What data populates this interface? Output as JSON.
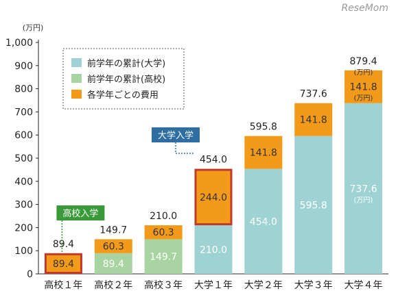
{
  "watermark": "ReseMom",
  "chart_data": {
    "type": "bar",
    "stacked": true,
    "unit_label": "(万円)",
    "categories": [
      "高校１年",
      "高校２年",
      "高校３年",
      "大学１年",
      "大学２年",
      "大学３年",
      "大学４年"
    ],
    "ylim": [
      0,
      1000
    ],
    "yticks": [
      0,
      100,
      200,
      300,
      400,
      500,
      600,
      700,
      800,
      900,
      1000
    ],
    "ytick_labels": [
      "0",
      "100",
      "200",
      "300",
      "400",
      "500",
      "600",
      "700",
      "800",
      "900",
      "1,000"
    ],
    "grid": false,
    "legend_position": "top-left",
    "series": [
      {
        "name": "前学年の累計(大学)",
        "color": "#9fd3d3",
        "values": [
          0,
          0,
          0,
          210.0,
          454.0,
          595.8,
          737.6
        ],
        "labels": [
          "",
          "",
          "",
          "210.0",
          "454.0",
          "595.8",
          "737.6"
        ]
      },
      {
        "name": "前学年の累計(高校)",
        "color": "#a7d4a0",
        "values": [
          0,
          89.4,
          149.7,
          0,
          0,
          0,
          0
        ],
        "labels": [
          "",
          "89.4",
          "149.7",
          "",
          "",
          "",
          ""
        ]
      },
      {
        "name": "各学年ごとの費用",
        "color": "#f39a1b",
        "values": [
          89.4,
          60.3,
          60.3,
          244.0,
          141.8,
          141.8,
          141.8
        ],
        "labels": [
          "89.4",
          "60.3",
          "60.3",
          "244.0",
          "141.8",
          "141.8",
          "141.8"
        ]
      }
    ],
    "totals": [
      "89.4",
      "149.7",
      "210.0",
      "454.0",
      "595.8",
      "737.6",
      "879.4"
    ],
    "unit_annotations": {
      "total": "(万円)",
      "bottom_segment": "(万円)",
      "top_segment": "(万円)"
    },
    "callouts": [
      {
        "text": "高校入学",
        "category_index": 0,
        "color": "#3a9a3a"
      },
      {
        "text": "大学入学",
        "category_index": 3,
        "color": "#2e6ea3"
      }
    ],
    "highlight_categories": [
      0,
      3
    ],
    "highlight_color": "#c0392b"
  }
}
